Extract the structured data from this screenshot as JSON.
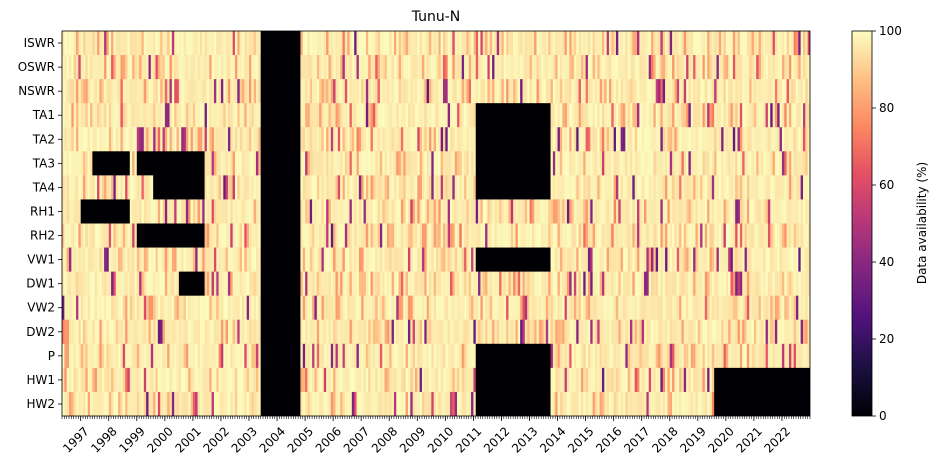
{
  "chart_data": {
    "type": "heatmap",
    "title": "Tunu-N",
    "variables": [
      "ISWR",
      "OSWR",
      "NSWR",
      "TA1",
      "TA2",
      "TA3",
      "TA4",
      "RH1",
      "RH2",
      "VW1",
      "DW1",
      "VW2",
      "DW2",
      "P",
      "HW1",
      "HW2"
    ],
    "x_ticks": [
      "1997",
      "1998",
      "1999",
      "2000",
      "2001",
      "2002",
      "2003",
      "2004",
      "2005",
      "2006",
      "2007",
      "2008",
      "2009",
      "2010",
      "2011",
      "2012",
      "2013",
      "2014",
      "2015",
      "2016",
      "2017",
      "2018",
      "2019",
      "2020",
      "2021",
      "2022"
    ],
    "x_range": [
      "1996-05",
      "2022-12"
    ],
    "resolution": "monthly",
    "colorbar": {
      "label": "Data availability (%)",
      "ticks": [
        0,
        20,
        40,
        60,
        80,
        100
      ],
      "range": [
        0,
        100
      ],
      "colormap": "magma"
    },
    "cells_description": "Monthly data availability per variable, 0-100%",
    "missing_periods": [
      {
        "variables": "all",
        "start": "2003-06",
        "end": "2004-10",
        "value": 0
      },
      {
        "variables": [
          "TA1",
          "TA2",
          "TA3",
          "TA4",
          "VW1",
          "P",
          "HW1",
          "HW2"
        ],
        "start": "2011-02",
        "end": "2013-09",
        "value": 0
      },
      {
        "variables": [
          "TA3"
        ],
        "start": "1997-06",
        "end": "1998-09",
        "value": 0
      },
      {
        "variables": [
          "TA3"
        ],
        "start": "1999-01",
        "end": "2001-05",
        "value": 0
      },
      {
        "variables": [
          "TA4"
        ],
        "start": "1999-08",
        "end": "2001-05",
        "value": 0
      },
      {
        "variables": [
          "RH1"
        ],
        "start": "1997-01",
        "end": "1998-09",
        "value": 0
      },
      {
        "variables": [
          "RH2"
        ],
        "start": "1999-01",
        "end": "2001-05",
        "value": 0
      },
      {
        "variables": [
          "DW1"
        ],
        "start": "2000-07",
        "end": "2001-05",
        "value": 0
      },
      {
        "variables": [
          "HW1",
          "HW2"
        ],
        "start": "2019-08",
        "end": "2022-12",
        "value": 0
      }
    ]
  }
}
